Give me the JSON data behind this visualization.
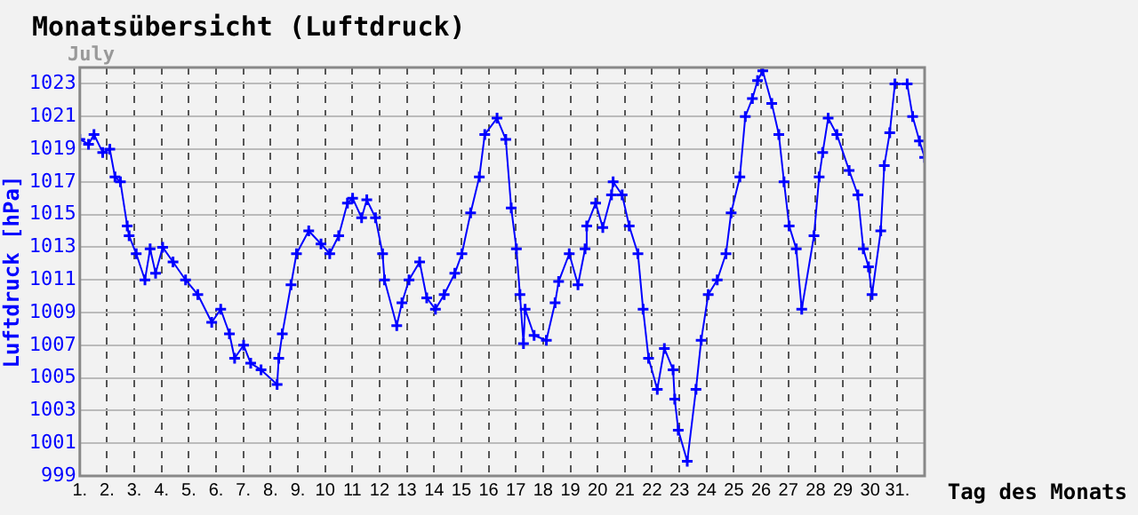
{
  "chart_data": {
    "type": "line",
    "title": "Monatsübersicht (Luftdruck)",
    "subtitle": "July",
    "xlabel": "Tag des Monats",
    "ylabel": "Luftdruck [hPa]",
    "xlim": [
      1,
      32
    ],
    "xticks": [
      {
        "value": 1,
        "label": "1."
      },
      {
        "value": 2,
        "label": "2."
      },
      {
        "value": 3,
        "label": "3."
      },
      {
        "value": 4,
        "label": "4."
      },
      {
        "value": 5,
        "label": "5."
      },
      {
        "value": 6,
        "label": "6."
      },
      {
        "value": 7,
        "label": "7."
      },
      {
        "value": 8,
        "label": "8."
      },
      {
        "value": 9,
        "label": "9."
      },
      {
        "value": 10,
        "label": "10"
      },
      {
        "value": 11,
        "label": "11"
      },
      {
        "value": 12,
        "label": "12"
      },
      {
        "value": 13,
        "label": "13"
      },
      {
        "value": 14,
        "label": "14"
      },
      {
        "value": 15,
        "label": "15"
      },
      {
        "value": 16,
        "label": "16"
      },
      {
        "value": 17,
        "label": "17"
      },
      {
        "value": 18,
        "label": "18"
      },
      {
        "value": 19,
        "label": "19"
      },
      {
        "value": 20,
        "label": "20"
      },
      {
        "value": 21,
        "label": "21"
      },
      {
        "value": 22,
        "label": "22"
      },
      {
        "value": 23,
        "label": "23"
      },
      {
        "value": 24,
        "label": "24"
      },
      {
        "value": 25,
        "label": "25"
      },
      {
        "value": 26,
        "label": "26"
      },
      {
        "value": 27,
        "label": "27"
      },
      {
        "value": 28,
        "label": "28"
      },
      {
        "value": 29,
        "label": "29"
      },
      {
        "value": 30,
        "label": "30"
      },
      {
        "value": 31,
        "label": "31."
      }
    ],
    "ylim": [
      999,
      1024
    ],
    "yticks": [
      999,
      1001,
      1003,
      1005,
      1007,
      1009,
      1011,
      1013,
      1015,
      1017,
      1019,
      1021,
      1023
    ],
    "grid": true,
    "marker": "cross",
    "line_style": "solid",
    "series": [
      {
        "color": "#0000ff",
        "x": [
          1.0,
          1.32,
          1.52,
          1.84,
          2.1,
          2.29,
          2.49,
          2.74,
          2.81,
          3.07,
          3.39,
          3.58,
          3.78,
          4.04,
          4.42,
          4.88,
          5.33,
          5.84,
          6.17,
          6.49,
          6.68,
          7.01,
          7.27,
          7.65,
          8.24,
          8.3,
          8.43,
          8.75,
          8.95,
          9.4,
          9.85,
          10.17,
          10.5,
          10.82,
          11.01,
          11.34,
          11.53,
          11.85,
          12.11,
          12.18,
          12.63,
          12.82,
          13.08,
          13.47,
          13.73,
          14.05,
          14.37,
          14.76,
          15.02,
          15.34,
          15.66,
          15.86,
          16.31,
          16.63,
          16.83,
          17.02,
          17.15,
          17.28,
          17.34,
          17.67,
          18.12,
          18.44,
          18.57,
          18.96,
          19.28,
          19.54,
          19.6,
          19.93,
          20.19,
          20.51,
          20.57,
          20.9,
          21.16,
          21.48,
          21.67,
          21.87,
          22.19,
          22.45,
          22.77,
          22.83,
          22.96,
          23.29,
          23.61,
          23.8,
          24.06,
          24.39,
          24.71,
          24.9,
          25.22,
          25.42,
          25.68,
          25.87,
          26.06,
          26.39,
          26.65,
          26.84,
          27.03,
          27.29,
          27.49,
          27.94,
          28.13,
          28.26,
          28.46,
          28.78,
          29.23,
          29.55,
          29.75,
          29.94,
          30.07,
          30.39,
          30.52,
          30.72,
          30.91,
          31.36,
          31.56,
          31.81,
          32.0
        ],
        "values": [
          1019.6,
          1019.3,
          1019.9,
          1018.8,
          1019.0,
          1017.3,
          1017.0,
          1014.3,
          1013.7,
          1012.6,
          1011.0,
          1012.9,
          1011.4,
          1013.0,
          1012.1,
          1011.0,
          1010.1,
          1008.4,
          1009.2,
          1007.7,
          1006.2,
          1007.0,
          1005.9,
          1005.5,
          1004.6,
          1006.2,
          1007.7,
          1010.7,
          1012.6,
          1014.0,
          1013.2,
          1012.6,
          1013.7,
          1015.7,
          1016.0,
          1014.8,
          1015.9,
          1014.8,
          1012.6,
          1011.0,
          1008.2,
          1009.6,
          1011.0,
          1012.1,
          1009.9,
          1009.2,
          1010.1,
          1011.4,
          1012.6,
          1015.1,
          1017.3,
          1019.9,
          1020.9,
          1019.6,
          1015.4,
          1012.9,
          1010.1,
          1007.1,
          1009.2,
          1007.6,
          1007.3,
          1009.6,
          1010.9,
          1012.6,
          1010.7,
          1012.9,
          1014.3,
          1015.7,
          1014.2,
          1016.2,
          1017.0,
          1016.2,
          1014.3,
          1012.6,
          1009.2,
          1006.2,
          1004.3,
          1006.8,
          1005.5,
          1003.7,
          1001.8,
          999.9,
          1004.3,
          1007.3,
          1010.1,
          1011.0,
          1012.6,
          1015.1,
          1017.3,
          1021.0,
          1022.1,
          1023.2,
          1023.8,
          1021.8,
          1019.9,
          1017.0,
          1014.3,
          1012.9,
          1009.2,
          1013.7,
          1017.3,
          1018.8,
          1020.9,
          1019.9,
          1017.7,
          1016.2,
          1012.9,
          1011.8,
          1010.1,
          1014.0,
          1018.0,
          1020.0,
          1023.0,
          1023.0,
          1021.0,
          1019.5,
          1018.5
        ]
      }
    ]
  }
}
